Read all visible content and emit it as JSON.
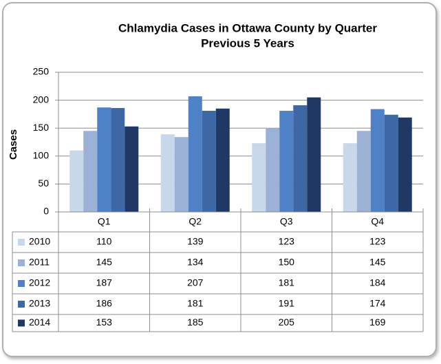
{
  "chart_data": {
    "type": "bar",
    "title": "Chlamydia Cases in Ottawa County by Quarter",
    "subtitle": "Previous 5 Years",
    "y_label": "Cases",
    "categories": [
      "Q1",
      "Q2",
      "Q3",
      "Q4"
    ],
    "series": [
      {
        "name": "2010",
        "color": "#c9d7eb",
        "values": [
          110,
          139,
          123,
          123
        ]
      },
      {
        "name": "2011",
        "color": "#9cb1d6",
        "values": [
          145,
          134,
          150,
          145
        ]
      },
      {
        "name": "2012",
        "color": "#4f81c7",
        "values": [
          187,
          207,
          181,
          184
        ]
      },
      {
        "name": "2013",
        "color": "#3d67a5",
        "values": [
          186,
          181,
          191,
          174
        ]
      },
      {
        "name": "2014",
        "color": "#203864",
        "values": [
          153,
          185,
          205,
          169
        ]
      }
    ],
    "ylim": [
      0,
      250
    ],
    "yticks": [
      0,
      50,
      100,
      150,
      200,
      250
    ],
    "grid": true
  }
}
